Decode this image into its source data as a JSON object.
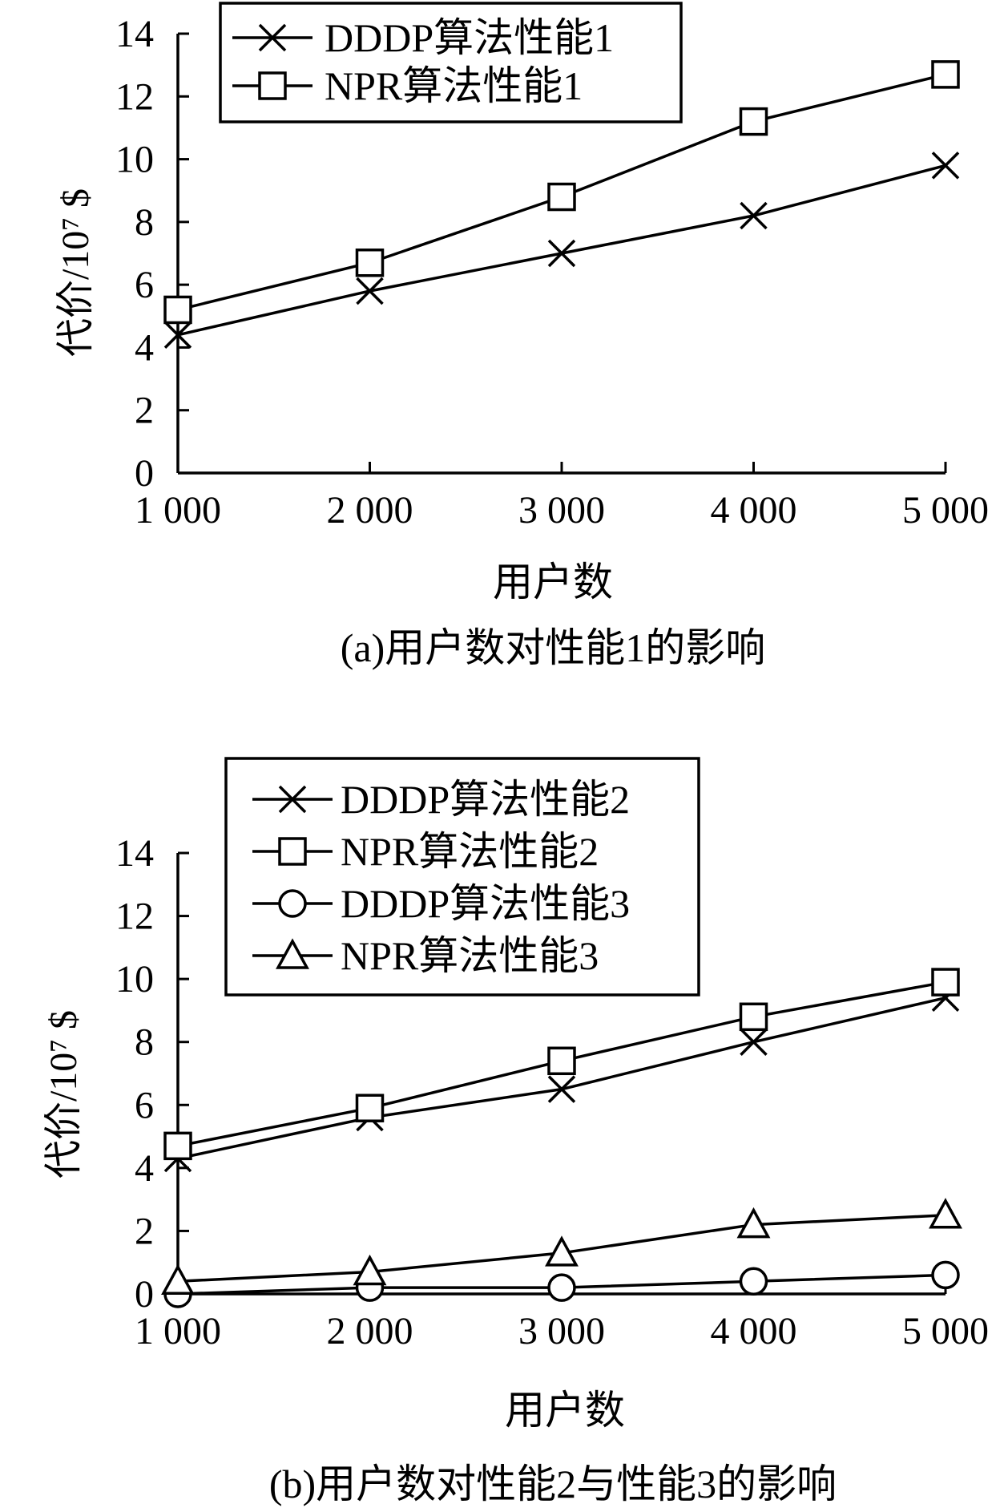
{
  "chart_data": [
    {
      "type": "line",
      "caption": "(a)用户数对性能1的影响",
      "xlabel": "用户数",
      "ylabel": "代价/10⁷ $",
      "categories": [
        "1 000",
        "2 000",
        "3 000",
        "4 000",
        "5 000"
      ],
      "x": [
        1000,
        2000,
        3000,
        4000,
        5000
      ],
      "yticks": [
        "0",
        "2",
        "4",
        "6",
        "8",
        "10",
        "12",
        "14"
      ],
      "ylim": [
        0,
        14
      ],
      "legend_position": "top-left",
      "series": [
        {
          "name": "DDDP算法性能1",
          "marker": "x",
          "values": [
            4.4,
            5.8,
            7.0,
            8.2,
            9.8
          ]
        },
        {
          "name": "NPR算法性能1",
          "marker": "square",
          "values": [
            5.2,
            6.7,
            8.8,
            11.2,
            12.7
          ]
        }
      ]
    },
    {
      "type": "line",
      "caption": "(b)用户数对性能2与性能3的影响",
      "xlabel": "用户数",
      "ylabel": "代价/10⁷ $",
      "categories": [
        "1 000",
        "2 000",
        "3 000",
        "4 000",
        "5 000"
      ],
      "x": [
        1000,
        2000,
        3000,
        4000,
        5000
      ],
      "yticks": [
        "0",
        "2",
        "4",
        "6",
        "8",
        "10",
        "12",
        "14"
      ],
      "ylim": [
        0,
        14
      ],
      "legend_position": "top-left",
      "series": [
        {
          "name": "DDDP算法性能2",
          "marker": "x",
          "values": [
            4.3,
            5.6,
            6.5,
            8.0,
            9.4
          ]
        },
        {
          "name": "NPR算法性能2",
          "marker": "square",
          "values": [
            4.7,
            5.9,
            7.4,
            8.8,
            9.9
          ]
        },
        {
          "name": "DDDP算法性能3",
          "marker": "circle",
          "values": [
            0.0,
            0.2,
            0.2,
            0.4,
            0.6
          ]
        },
        {
          "name": "NPR算法性能3",
          "marker": "triangle",
          "values": [
            0.4,
            0.7,
            1.3,
            2.2,
            2.5
          ]
        }
      ]
    }
  ]
}
